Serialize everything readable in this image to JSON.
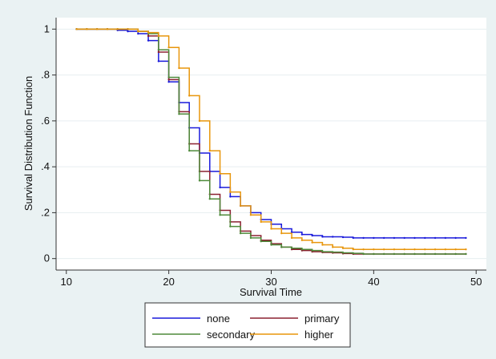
{
  "chart_data": {
    "type": "step",
    "x_label": "Survival Time",
    "y_label": "Survival Distribution Function",
    "x": [
      11,
      12,
      13,
      14,
      15,
      16,
      17,
      18,
      19,
      20,
      21,
      22,
      23,
      24,
      25,
      26,
      27,
      28,
      29,
      30,
      31,
      32,
      33,
      34,
      35,
      36,
      37,
      38,
      39,
      40,
      41,
      42,
      43,
      44,
      45,
      46,
      47,
      48,
      49
    ],
    "series": [
      {
        "name": "none",
        "color": "#1a1adb",
        "values": [
          1,
          1,
          1,
          1,
          0.995,
          0.99,
          0.98,
          0.95,
          0.86,
          0.77,
          0.68,
          0.57,
          0.46,
          0.38,
          0.31,
          0.27,
          0.23,
          0.2,
          0.17,
          0.15,
          0.13,
          0.115,
          0.105,
          0.1,
          0.095,
          0.095,
          0.093,
          0.09,
          0.09,
          0.09,
          0.09,
          0.09,
          0.09,
          0.09,
          0.09,
          0.09,
          0.09,
          0.09,
          0.09
        ]
      },
      {
        "name": "primary",
        "color": "#8b2030",
        "values": [
          1,
          1,
          1,
          1,
          1,
          1,
          0.99,
          0.97,
          0.9,
          0.78,
          0.64,
          0.5,
          0.38,
          0.28,
          0.21,
          0.16,
          0.12,
          0.1,
          0.08,
          0.065,
          0.05,
          0.04,
          0.035,
          0.03,
          0.027,
          0.025,
          0.022,
          0.02,
          0.02,
          0.02,
          0.02,
          0.02,
          0.02,
          0.02,
          0.02,
          0.02,
          0.02,
          0.02,
          0.02
        ]
      },
      {
        "name": "secondary",
        "color": "#4e8a3a",
        "values": [
          1,
          1,
          1,
          1,
          1,
          1,
          0.99,
          0.98,
          0.91,
          0.79,
          0.63,
          0.47,
          0.34,
          0.26,
          0.19,
          0.14,
          0.11,
          0.09,
          0.075,
          0.06,
          0.05,
          0.045,
          0.04,
          0.035,
          0.03,
          0.028,
          0.025,
          0.023,
          0.02,
          0.02,
          0.02,
          0.02,
          0.02,
          0.02,
          0.02,
          0.02,
          0.02,
          0.02,
          0.02
        ]
      },
      {
        "name": "higher",
        "color": "#e8960c",
        "values": [
          1,
          1,
          1,
          1,
          1,
          1,
          0.99,
          0.985,
          0.97,
          0.92,
          0.83,
          0.71,
          0.6,
          0.47,
          0.37,
          0.29,
          0.23,
          0.19,
          0.16,
          0.13,
          0.11,
          0.09,
          0.08,
          0.07,
          0.06,
          0.05,
          0.045,
          0.04,
          0.04,
          0.04,
          0.04,
          0.04,
          0.04,
          0.04,
          0.04,
          0.04,
          0.04,
          0.04,
          0.04
        ]
      }
    ],
    "xlim": [
      9,
      51
    ],
    "xticks": [
      10,
      20,
      30,
      40,
      50
    ],
    "ylim": [
      -0.05,
      1.05
    ],
    "yticks": [
      0,
      {
        "value": 0.2,
        "label": ".2"
      },
      {
        "value": 0.4,
        "label": ".4"
      },
      {
        "value": 0.6,
        "label": ".6"
      },
      {
        "value": 0.8,
        "label": ".8"
      },
      1
    ],
    "grid": true,
    "legend": "bottom"
  }
}
